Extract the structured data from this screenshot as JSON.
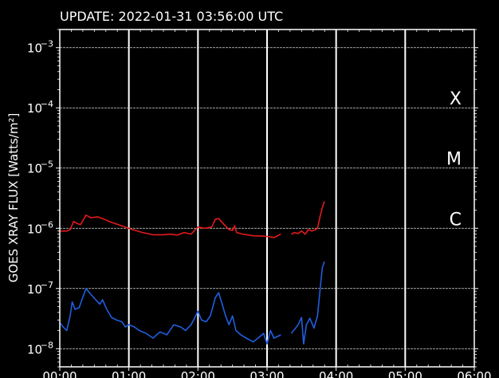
{
  "update_text": "UPDATE: 2022-01-31 03:56:00 UTC",
  "chart_data": {
    "type": "line",
    "ylabel": "GOES XRAY FLUX [Watts/m²]",
    "yscale": "log",
    "ylim": [
      5e-09,
      0.002
    ],
    "xlim": [
      "00:00",
      "06:00"
    ],
    "x_ticks": [
      "00:00",
      "01:00",
      "02:00",
      "03:00",
      "04:00",
      "05:00",
      "06:00"
    ],
    "y_ticks": [
      {
        "value": 0.001,
        "base": "10",
        "exp": "−3"
      },
      {
        "value": 0.0001,
        "base": "10",
        "exp": "−4"
      },
      {
        "value": 1e-05,
        "base": "10",
        "exp": "−5"
      },
      {
        "value": 1e-06,
        "base": "10",
        "exp": "−6"
      },
      {
        "value": 1e-07,
        "base": "10",
        "exp": "−7"
      },
      {
        "value": 1e-08,
        "base": "10",
        "exp": "−8"
      }
    ],
    "flare_classes": [
      {
        "label": "X",
        "value": 0.0001
      },
      {
        "label": "M",
        "value": 1e-05
      },
      {
        "label": "C",
        "value": 1e-06
      }
    ],
    "grid": true,
    "series": [
      {
        "color": "#e41a1c",
        "segments": [
          [
            [
              0.0,
              9e-07
            ],
            [
              0.1,
              9e-07
            ],
            [
              0.15,
              9.5e-07
            ],
            [
              0.2,
              1.3e-06
            ],
            [
              0.25,
              1.2e-06
            ],
            [
              0.3,
              1.15e-06
            ],
            [
              0.38,
              1.65e-06
            ],
            [
              0.45,
              1.5e-06
            ],
            [
              0.55,
              1.55e-06
            ],
            [
              0.65,
              1.4e-06
            ],
            [
              0.75,
              1.25e-06
            ],
            [
              0.85,
              1.15e-06
            ],
            [
              0.95,
              1.05e-06
            ],
            [
              1.05,
              9.5e-07
            ],
            [
              1.2,
              8.5e-07
            ],
            [
              1.35,
              7.8e-07
            ],
            [
              1.5,
              7.8e-07
            ],
            [
              1.6,
              8e-07
            ],
            [
              1.7,
              7.7e-07
            ],
            [
              1.8,
              8.5e-07
            ],
            [
              1.9,
              8e-07
            ],
            [
              2.0,
              1.05e-06
            ],
            [
              2.1,
              1e-06
            ],
            [
              2.2,
              1.05e-06
            ],
            [
              2.25,
              1.4e-06
            ],
            [
              2.3,
              1.45e-06
            ],
            [
              2.35,
              1.25e-06
            ],
            [
              2.45,
              9.5e-07
            ],
            [
              2.5,
              9.2e-07
            ],
            [
              2.53,
              1.1e-06
            ],
            [
              2.56,
              8.5e-07
            ],
            [
              2.65,
              8e-07
            ],
            [
              2.8,
              7.5e-07
            ],
            [
              2.95,
              7.4e-07
            ],
            [
              3.05,
              7.2e-07
            ],
            [
              3.1,
              7e-07
            ],
            [
              3.2,
              8e-07
            ]
          ],
          [
            [
              3.35,
              8e-07
            ],
            [
              3.4,
              8.5e-07
            ],
            [
              3.45,
              8.2e-07
            ],
            [
              3.5,
              9e-07
            ],
            [
              3.55,
              8e-07
            ],
            [
              3.6,
              9.5e-07
            ],
            [
              3.65,
              9e-07
            ],
            [
              3.7,
              9.5e-07
            ],
            [
              3.73,
              1e-06
            ],
            [
              3.77,
              1.6e-06
            ],
            [
              3.8,
              2.2e-06
            ],
            [
              3.83,
              2.8e-06
            ]
          ]
        ]
      },
      {
        "color": "#1f5fe0",
        "segments": [
          [
            [
              0.0,
              2.7e-08
            ],
            [
              0.05,
              2.3e-08
            ],
            [
              0.1,
              2e-08
            ],
            [
              0.15,
              3.5e-08
            ],
            [
              0.18,
              6e-08
            ],
            [
              0.22,
              4.5e-08
            ],
            [
              0.28,
              4.8e-08
            ],
            [
              0.33,
              7e-08
            ],
            [
              0.38,
              1e-07
            ],
            [
              0.45,
              8e-08
            ],
            [
              0.52,
              6.5e-08
            ],
            [
              0.58,
              5.5e-08
            ],
            [
              0.62,
              6.5e-08
            ],
            [
              0.68,
              4.5e-08
            ],
            [
              0.75,
              3.3e-08
            ],
            [
              0.82,
              3e-08
            ],
            [
              0.9,
              2.8e-08
            ],
            [
              0.95,
              2.3e-08
            ],
            [
              1.0,
              2.5e-08
            ],
            [
              1.08,
              2.3e-08
            ],
            [
              1.15,
              2e-08
            ],
            [
              1.25,
              1.8e-08
            ],
            [
              1.35,
              1.5e-08
            ],
            [
              1.45,
              1.9e-08
            ],
            [
              1.55,
              1.7e-08
            ],
            [
              1.65,
              2.5e-08
            ],
            [
              1.75,
              2.3e-08
            ],
            [
              1.82,
              2e-08
            ],
            [
              1.9,
              2.5e-08
            ],
            [
              1.95,
              3.2e-08
            ],
            [
              2.0,
              4.2e-08
            ],
            [
              2.05,
              3e-08
            ],
            [
              2.12,
              2.8e-08
            ],
            [
              2.18,
              3.5e-08
            ],
            [
              2.25,
              7e-08
            ],
            [
              2.3,
              8.5e-08
            ],
            [
              2.35,
              5.5e-08
            ],
            [
              2.4,
              3.5e-08
            ],
            [
              2.45,
              2.5e-08
            ],
            [
              2.5,
              3.5e-08
            ],
            [
              2.55,
              2e-08
            ],
            [
              2.62,
              1.7e-08
            ],
            [
              2.7,
              1.5e-08
            ],
            [
              2.8,
              1.3e-08
            ],
            [
              2.9,
              1.6e-08
            ],
            [
              2.95,
              1.8e-08
            ],
            [
              3.0,
              1.2e-08
            ],
            [
              3.05,
              2e-08
            ],
            [
              3.1,
              1.5e-08
            ],
            [
              3.2,
              1.7e-08
            ]
          ],
          [
            [
              3.35,
              1.8e-08
            ],
            [
              3.4,
              2.1e-08
            ],
            [
              3.45,
              2.5e-08
            ],
            [
              3.5,
              3.3e-08
            ],
            [
              3.53,
              1.2e-08
            ],
            [
              3.57,
              2.5e-08
            ],
            [
              3.62,
              3.2e-08
            ],
            [
              3.68,
              2.2e-08
            ],
            [
              3.73,
              3.5e-08
            ],
            [
              3.77,
              1e-07
            ],
            [
              3.8,
              2.2e-07
            ],
            [
              3.83,
              2.8e-07
            ]
          ]
        ]
      }
    ]
  }
}
